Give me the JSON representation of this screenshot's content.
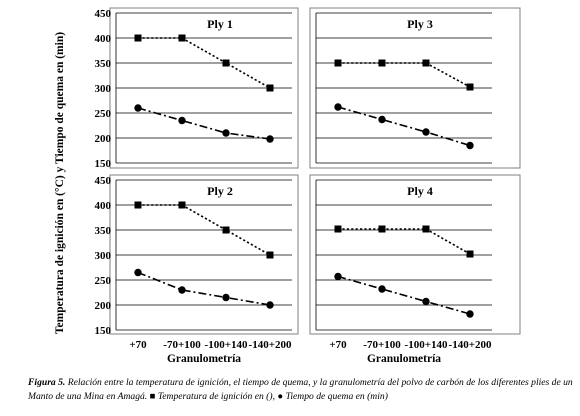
{
  "chart_data": [
    {
      "type": "line",
      "title": "Ply 1",
      "categories": [
        "+70",
        "-70+100",
        "-100+140",
        "-140+200"
      ],
      "ylim": [
        150,
        450
      ],
      "yticks": [
        150,
        200,
        250,
        300,
        350,
        400,
        450
      ],
      "grid": true,
      "series": [
        {
          "name": "Temperatura de ignición en ()",
          "values": [
            400,
            400,
            350,
            300
          ],
          "marker": "square",
          "line": "dotted"
        },
        {
          "name": "Tiempo de quema en (min)",
          "values": [
            260,
            235,
            210,
            198
          ],
          "marker": "circle",
          "line": "dash-dot"
        }
      ]
    },
    {
      "type": "line",
      "title": "Ply 3",
      "categories": [
        "+70",
        "-70+100",
        "-100+140",
        "-140+200"
      ],
      "ylim": [
        150,
        450
      ],
      "yticks": [
        150,
        200,
        250,
        300,
        350,
        400,
        450
      ],
      "grid": true,
      "series": [
        {
          "name": "Temperatura de ignición en ()",
          "values": [
            350,
            350,
            350,
            302
          ],
          "marker": "square",
          "line": "dotted"
        },
        {
          "name": "Tiempo de quema en (min)",
          "values": [
            262,
            237,
            212,
            185
          ],
          "marker": "circle",
          "line": "dash-dot"
        }
      ]
    },
    {
      "type": "line",
      "title": "Ply 2",
      "categories": [
        "+70",
        "-70+100",
        "-100+140",
        "-140+200"
      ],
      "ylim": [
        150,
        450
      ],
      "yticks": [
        150,
        200,
        250,
        300,
        350,
        400,
        450
      ],
      "grid": true,
      "series": [
        {
          "name": "Temperatura de ignición en ()",
          "values": [
            400,
            400,
            350,
            300
          ],
          "marker": "square",
          "line": "dotted"
        },
        {
          "name": "Tiempo de quema en (min)",
          "values": [
            265,
            230,
            215,
            200
          ],
          "marker": "circle",
          "line": "dash-dot"
        }
      ]
    },
    {
      "type": "line",
      "title": "Ply 4",
      "categories": [
        "+70",
        "-70+100",
        "-100+140",
        "-140+200"
      ],
      "ylim": [
        150,
        450
      ],
      "yticks": [
        150,
        200,
        250,
        300,
        350,
        400,
        450
      ],
      "grid": true,
      "series": [
        {
          "name": "Temperatura de ignición en ()",
          "values": [
            352,
            352,
            352,
            302
          ],
          "marker": "square",
          "line": "dotted"
        },
        {
          "name": "Tiempo de quema en (min)",
          "values": [
            257,
            232,
            207,
            182
          ],
          "marker": "circle",
          "line": "dash-dot"
        }
      ]
    }
  ],
  "axes": {
    "ylabel": "Temperatura de ignición en (°C) y Tiempo de quema en (min)",
    "xlabel": "Granulometría"
  },
  "caption": {
    "label": "Figura 5.",
    "text": "Relación entre la temperatura de ignición, el tiempo de quema, y la granulometría del polvo de carbón de los diferentes plies de un Manto de una Mina  en Amagá.",
    "legend_temp": "Temperatura de ignición en (),",
    "legend_time": "Tiempo de quema en (min)"
  },
  "colors": {
    "plot_bg": "#ffffff",
    "frame": "#808080",
    "grid": "#000000",
    "series": "#000000"
  }
}
